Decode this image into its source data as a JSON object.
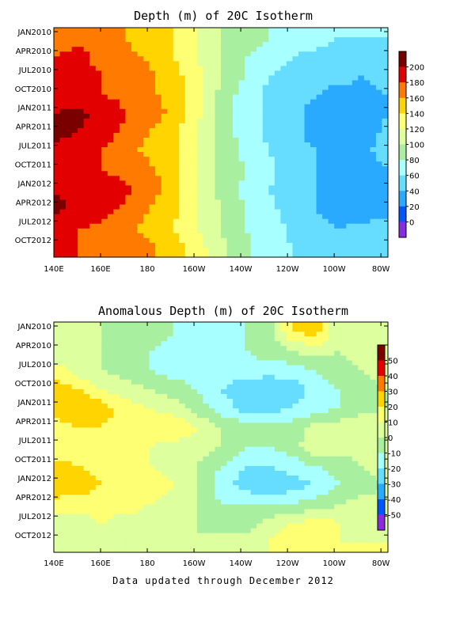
{
  "footer_text": "Data updated through December 2012",
  "chart_data": [
    {
      "type": "heatmap",
      "title": "Depth (m) of 20C Isotherm",
      "x_tick_labels": [
        "140E",
        "160E",
        "180",
        "160W",
        "140W",
        "120W",
        "100W",
        "80W"
      ],
      "y_tick_labels": [
        "JAN2010",
        "APR2010",
        "JUL2010",
        "OCT2010",
        "JAN2011",
        "APR2011",
        "JUL2011",
        "OCT2011",
        "JAN2012",
        "APR2012",
        "JUL2012",
        "OCT2012"
      ],
      "colorbar_labels": [
        "200",
        "180",
        "160",
        "140",
        "120",
        "100",
        "80",
        "60",
        "40",
        "20",
        "0"
      ],
      "colorbar_colors": [
        "#7a0000",
        "#e30000",
        "#ff7a00",
        "#ffd400",
        "#ffff73",
        "#ddff9e",
        "#a8f0a0",
        "#a8ffff",
        "#66ddff",
        "#2aaaff",
        "#0055ff",
        "#8a2be2"
      ],
      "longitudes": [
        140,
        150,
        160,
        170,
        180,
        190,
        200,
        210,
        220,
        230,
        240,
        250,
        260,
        270,
        280
      ],
      "rows": [
        [
          170,
          175,
          170,
          160,
          150,
          140,
          120,
          100,
          90,
          80,
          70,
          70,
          60,
          60,
          60
        ],
        [
          180,
          185,
          175,
          165,
          155,
          140,
          120,
          100,
          80,
          70,
          60,
          55,
          50,
          50,
          50
        ],
        [
          190,
          185,
          180,
          175,
          165,
          150,
          125,
          100,
          80,
          60,
          50,
          45,
          45,
          40,
          45
        ],
        [
          190,
          185,
          180,
          175,
          165,
          150,
          125,
          95,
          70,
          55,
          45,
          40,
          35,
          35,
          40
        ],
        [
          200,
          205,
          195,
          180,
          170,
          155,
          125,
          95,
          70,
          55,
          45,
          35,
          35,
          30,
          40
        ],
        [
          205,
          200,
          190,
          175,
          160,
          145,
          120,
          95,
          70,
          55,
          45,
          35,
          30,
          30,
          45
        ],
        [
          195,
          190,
          180,
          165,
          155,
          145,
          120,
          95,
          75,
          60,
          45,
          40,
          35,
          35,
          50
        ],
        [
          185,
          185,
          180,
          175,
          165,
          150,
          120,
          95,
          80,
          65,
          50,
          40,
          35,
          30,
          40
        ],
        [
          200,
          195,
          195,
          185,
          170,
          150,
          120,
          95,
          75,
          60,
          50,
          40,
          35,
          30,
          25
        ],
        [
          205,
          195,
          190,
          175,
          160,
          145,
          120,
          100,
          80,
          65,
          50,
          40,
          30,
          30,
          30
        ],
        [
          185,
          180,
          175,
          165,
          155,
          140,
          120,
          100,
          80,
          70,
          55,
          45,
          40,
          45,
          50
        ],
        [
          180,
          180,
          175,
          170,
          165,
          150,
          130,
          105,
          85,
          70,
          60,
          55,
          50,
          55,
          60
        ]
      ]
    },
    {
      "type": "heatmap",
      "title": "Anomalous Depth (m) of 20C Isotherm",
      "x_tick_labels": [
        "140E",
        "160E",
        "180",
        "160W",
        "140W",
        "120W",
        "100W",
        "80W"
      ],
      "y_tick_labels": [
        "JAN2010",
        "APR2010",
        "JUL2010",
        "OCT2010",
        "JAN2011",
        "APR2011",
        "JUL2011",
        "OCT2011",
        "JAN2012",
        "APR2012",
        "JUL2012",
        "OCT2012"
      ],
      "colorbar_labels": [
        "50",
        "40",
        "30",
        "20",
        "10",
        "0",
        "-10",
        "-20",
        "-30",
        "-40",
        "-50"
      ],
      "colorbar_colors": [
        "#7a0000",
        "#e30000",
        "#ff7a00",
        "#ffd400",
        "#ffff73",
        "#ddff9e",
        "#a8f0a0",
        "#a8ffff",
        "#66ddff",
        "#2aaaff",
        "#0055ff",
        "#8a2be2"
      ],
      "longitudes": [
        140,
        150,
        160,
        170,
        180,
        190,
        200,
        210,
        220,
        230,
        240,
        250,
        260,
        270,
        280
      ],
      "rows": [
        [
          5,
          5,
          0,
          -5,
          -5,
          -10,
          -15,
          -15,
          -10,
          -5,
          20,
          25,
          0,
          5,
          5
        ],
        [
          0,
          5,
          0,
          -5,
          -10,
          -15,
          -15,
          -10,
          -10,
          -5,
          0,
          5,
          0,
          5,
          5
        ],
        [
          15,
          5,
          0,
          -5,
          -10,
          -15,
          -15,
          -15,
          -15,
          -15,
          -15,
          -10,
          -5,
          0,
          5
        ],
        [
          25,
          20,
          10,
          5,
          0,
          -5,
          -10,
          -20,
          -25,
          -30,
          -25,
          -15,
          -10,
          -5,
          0
        ],
        [
          25,
          30,
          25,
          15,
          10,
          5,
          -5,
          -15,
          -25,
          -25,
          -20,
          -15,
          -10,
          -5,
          0
        ],
        [
          15,
          20,
          20,
          15,
          15,
          20,
          10,
          0,
          -5,
          -5,
          -5,
          5,
          5,
          10,
          5
        ],
        [
          10,
          15,
          15,
          10,
          10,
          5,
          5,
          0,
          -10,
          -10,
          -5,
          10,
          5,
          5,
          10
        ],
        [
          25,
          20,
          15,
          15,
          10,
          5,
          0,
          -10,
          -20,
          -20,
          -15,
          -10,
          -5,
          0,
          5
        ],
        [
          30,
          25,
          20,
          15,
          15,
          10,
          0,
          -15,
          -25,
          -30,
          -25,
          -20,
          -10,
          -5,
          0
        ],
        [
          15,
          15,
          15,
          15,
          10,
          5,
          0,
          -10,
          -10,
          -10,
          -10,
          -5,
          0,
          5,
          5
        ],
        [
          5,
          5,
          10,
          5,
          5,
          0,
          0,
          -5,
          -5,
          5,
          10,
          15,
          10,
          5,
          10
        ],
        [
          5,
          10,
          5,
          5,
          0,
          5,
          0,
          5,
          5,
          10,
          15,
          15,
          10,
          10,
          10
        ]
      ]
    }
  ]
}
